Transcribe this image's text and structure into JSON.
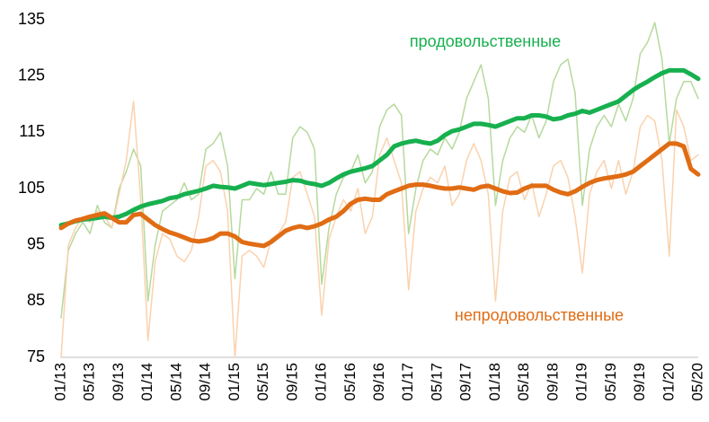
{
  "chart_data": {
    "type": "line",
    "categories": [
      "01/13",
      null,
      null,
      null,
      "05/13",
      null,
      null,
      null,
      "09/13",
      null,
      null,
      null,
      "01/14",
      null,
      null,
      null,
      "05/14",
      null,
      null,
      null,
      "09/14",
      null,
      null,
      null,
      "01/15",
      null,
      null,
      null,
      "05/15",
      null,
      null,
      null,
      "09/15",
      null,
      null,
      null,
      "01/16",
      null,
      null,
      null,
      "05/16",
      null,
      null,
      null,
      "09/16",
      null,
      null,
      null,
      "01/17",
      null,
      null,
      null,
      "05/17",
      null,
      null,
      null,
      "09/17",
      null,
      null,
      null,
      "01/18",
      null,
      null,
      null,
      "05/18",
      null,
      null,
      null,
      "09/18",
      null,
      null,
      null,
      "01/19",
      null,
      null,
      null,
      "05/19",
      null,
      null,
      null,
      "09/19",
      null,
      null,
      null,
      "01/20",
      null,
      null,
      null,
      "05/20"
    ],
    "series": [
      {
        "color": "#b6d99c",
        "width": 1.5,
        "values": [
          82,
          94,
          97,
          99,
          97,
          102,
          99,
          98,
          105,
          108,
          112,
          109,
          85,
          95,
          101,
          102,
          103,
          106,
          103,
          104,
          112,
          113,
          115,
          109,
          89,
          103,
          103,
          105,
          104,
          108,
          104,
          104,
          114,
          116,
          115,
          112,
          88,
          98,
          104,
          107,
          108,
          111,
          106,
          108,
          116,
          119,
          120,
          118,
          97,
          105,
          110,
          112,
          111,
          114,
          112,
          115,
          121,
          124,
          127,
          121,
          102,
          110,
          114,
          116,
          115,
          118,
          114,
          117,
          124,
          127,
          128,
          122,
          102,
          112,
          116,
          118,
          116,
          120,
          117,
          121,
          129,
          131,
          134.5,
          128,
          113,
          121,
          124,
          124,
          121
        ]
      },
      {
        "color": "#fad2ae",
        "width": 1.5,
        "values": [
          75,
          95,
          98,
          100,
          99,
          101,
          100,
          98,
          104,
          110,
          120.5,
          103,
          78,
          92,
          97,
          96,
          93,
          92,
          94,
          100,
          109,
          110,
          108,
          101,
          75,
          93,
          94,
          93,
          91,
          96,
          97,
          99,
          107,
          108,
          104,
          100,
          82.5,
          96,
          100,
          103,
          101,
          105,
          97,
          100,
          111,
          114,
          110,
          106,
          87,
          101,
          105,
          107,
          106,
          109,
          102,
          104,
          110,
          113,
          110,
          104,
          85,
          101,
          107,
          108,
          103,
          106,
          100,
          104,
          109,
          110,
          107,
          100,
          90,
          104,
          108,
          110,
          105,
          110,
          104,
          108,
          116,
          118,
          117,
          110,
          93,
          119,
          116,
          110,
          111
        ]
      },
      {
        "name": "продовольственные",
        "color": "#17b04f",
        "width": 5,
        "values": [
          98.5,
          98.8,
          99.2,
          99.5,
          99.6,
          99.8,
          100,
          99.8,
          100,
          100.5,
          101.2,
          101.8,
          102.2,
          102.5,
          102.8,
          103.3,
          103.5,
          104,
          104.3,
          104.6,
          105,
          105.5,
          105.3,
          105.2,
          105,
          105.5,
          106,
          105.8,
          105.6,
          105.8,
          106,
          106.2,
          106.5,
          106.4,
          106,
          105.8,
          105.5,
          106,
          106.8,
          107.5,
          108,
          108.3,
          108.6,
          109,
          110,
          111,
          112.5,
          113,
          113.3,
          113.5,
          113.2,
          113,
          113.5,
          114.5,
          115.2,
          115.5,
          116,
          116.5,
          116.5,
          116.3,
          116,
          116.5,
          117,
          117.5,
          117.5,
          118,
          118,
          117.8,
          117.3,
          117.5,
          118,
          118.3,
          118.8,
          118.5,
          119,
          119.5,
          120,
          120.5,
          121.5,
          122.5,
          123.3,
          124,
          124.8,
          125.5,
          126,
          126,
          126,
          125.3,
          124.5
        ]
      },
      {
        "name": "непродовольственные",
        "color": "#e06c14",
        "width": 5,
        "values": [
          98,
          98.8,
          99.3,
          99.6,
          100,
          100.3,
          100.6,
          99.8,
          99,
          99,
          100.3,
          100.5,
          99.5,
          98.5,
          97.8,
          97.2,
          96.8,
          96.3,
          95.8,
          95.6,
          95.8,
          96.2,
          97,
          97,
          96.5,
          95.5,
          95.2,
          95,
          94.8,
          95.5,
          96.5,
          97.5,
          98,
          98.3,
          98,
          98.3,
          98.8,
          99.5,
          100,
          101,
          102.3,
          103,
          103.2,
          103,
          103,
          104,
          104.5,
          105,
          105.5,
          105.7,
          105.7,
          105.5,
          105.2,
          105,
          105,
          105.2,
          105,
          104.8,
          105.3,
          105.5,
          105,
          104.5,
          104.2,
          104.3,
          105,
          105.5,
          105.5,
          105.5,
          104.8,
          104.3,
          104,
          104.5,
          105.3,
          106,
          106.5,
          106.8,
          107,
          107.2,
          107.5,
          108,
          109,
          110,
          111,
          112,
          113,
          113,
          112.5,
          108.5,
          107.5
        ]
      }
    ],
    "ylim": [
      75,
      135
    ],
    "yticks": [
      75,
      85,
      95,
      105,
      115,
      125,
      135
    ],
    "grid": false
  }
}
